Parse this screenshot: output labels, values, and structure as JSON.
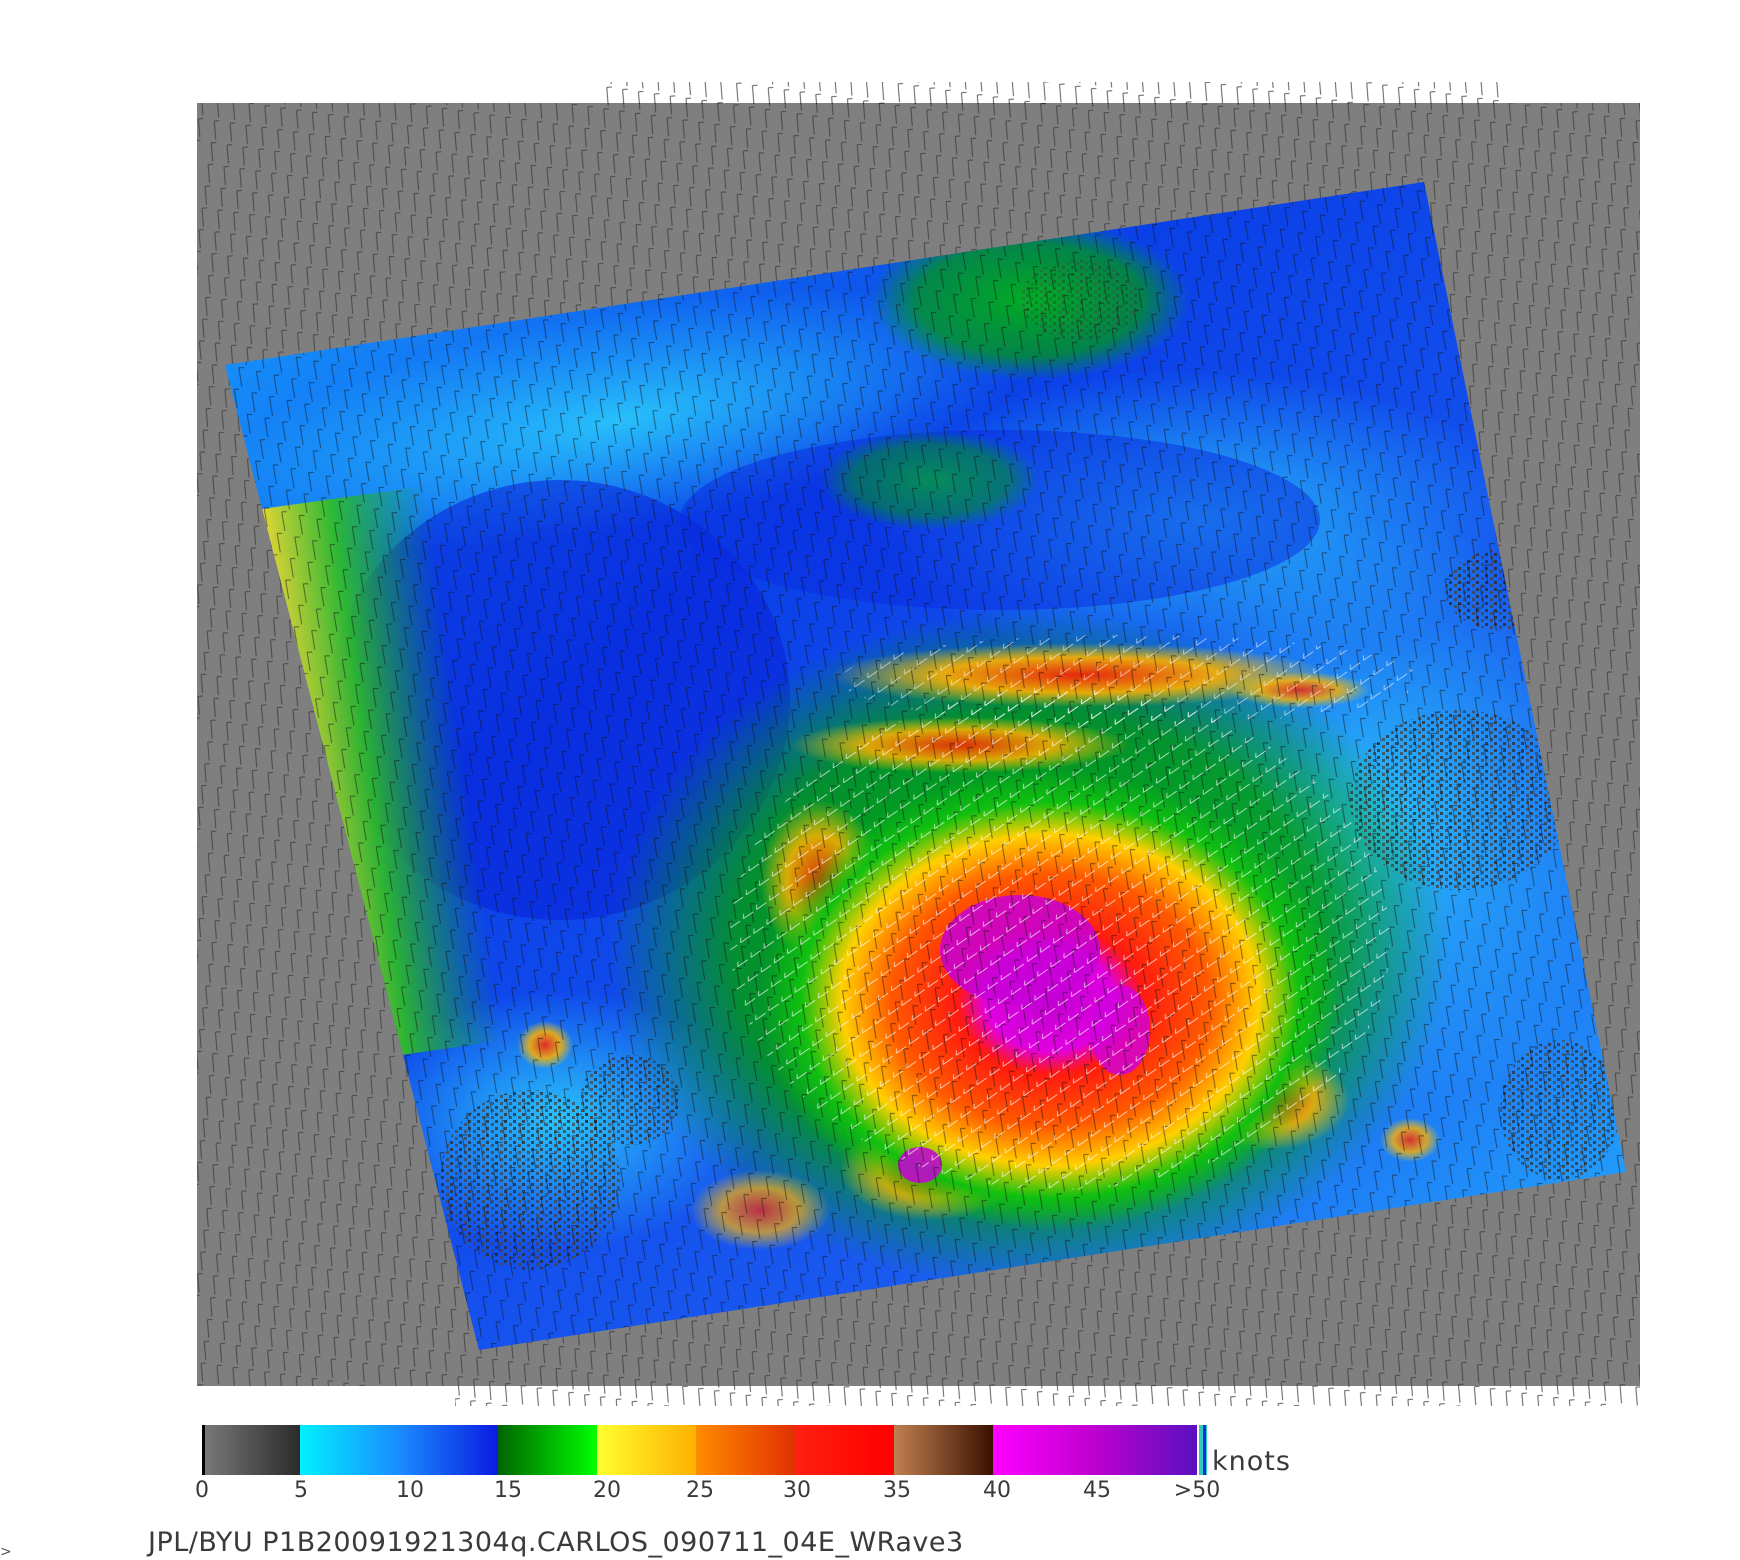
{
  "image": {
    "subject": "scatterometer ocean surface wind speed map with wind direction barbs around a tropical cyclone",
    "colors": {
      "background": "#ffffff",
      "no_data": "#7f7f7f",
      "barb_dark": "#111111",
      "barb_light": "#ffffff"
    }
  },
  "colorbar": {
    "ticks": [
      "0",
      "5",
      "10",
      "15",
      "20",
      "25",
      "30",
      "35",
      "40",
      "45",
      ">50"
    ],
    "units": "knots",
    "segments": [
      {
        "from": 0,
        "to": 5,
        "colors": [
          "#7a7a7a",
          "#2b2b2b"
        ]
      },
      {
        "from": 5,
        "to": 15,
        "colors": [
          "#00f0ff",
          "#0a1be0"
        ]
      },
      {
        "from": 15,
        "to": 20,
        "colors": [
          "#006400",
          "#00ff00"
        ]
      },
      {
        "from": 20,
        "to": 25,
        "colors": [
          "#ffff30",
          "#ffb000"
        ]
      },
      {
        "from": 25,
        "to": 30,
        "colors": [
          "#ff8c00",
          "#e03000"
        ]
      },
      {
        "from": 30,
        "to": 35,
        "colors": [
          "#ff2010",
          "#ff0000"
        ]
      },
      {
        "from": 35,
        "to": 40,
        "colors": [
          "#c08050",
          "#3a1000"
        ]
      },
      {
        "from": 40,
        "to": 45,
        "colors": [
          "#ff00ff",
          "#c000d0"
        ]
      },
      {
        "from": 45,
        "to": 50,
        "colors": [
          "#c000d0",
          "#5a10c0"
        ]
      }
    ]
  },
  "caption": "JPL/BYU  P1B20091921304q.CARLOS_090711_04E_WRave3",
  "corner_mark": ">"
}
